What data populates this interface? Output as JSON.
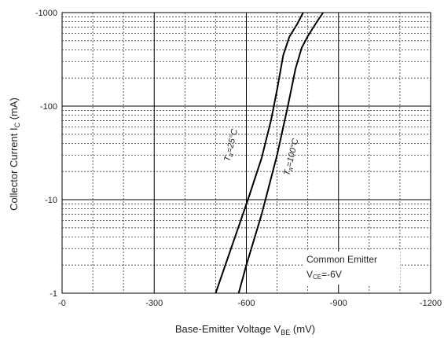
{
  "chart_data": {
    "type": "line",
    "title": "",
    "xlabel": {
      "text": "Base-Emitter Voltage  V",
      "sub": "BE",
      "unit": "  (mV)"
    },
    "ylabel": {
      "text": "Collector Current  I",
      "sub": "C",
      "unit": " (mA)"
    },
    "xlim": [
      0,
      -1200
    ],
    "ylim": [
      -1,
      -1000
    ],
    "yscale": "log",
    "grid": true,
    "x_ticks": [
      0,
      -300,
      -600,
      -900,
      -1200
    ],
    "x_tick_labels": [
      "-0",
      "-300",
      "-600",
      "-900",
      "-1200"
    ],
    "y_ticks": [
      -1,
      -10,
      -100,
      -1000
    ],
    "y_tick_labels": [
      "-1",
      "-10",
      "-100",
      "-1000"
    ],
    "series": [
      {
        "name": "Ta=25°C",
        "label": {
          "pre": "T",
          "sub": "a",
          "post": "=25°C"
        },
        "points": [
          [
            -500,
            -1
          ],
          [
            -550,
            -3
          ],
          [
            -605,
            -10
          ],
          [
            -650,
            -28
          ],
          [
            -680,
            -70
          ],
          [
            -700,
            -150
          ],
          [
            -720,
            -350
          ],
          [
            -740,
            -550
          ],
          [
            -765,
            -750
          ],
          [
            -785,
            -1000
          ]
        ]
      },
      {
        "name": "Ta=100°C",
        "label": {
          "pre": "T",
          "sub": "a",
          "post": "=100°C"
        },
        "points": [
          [
            -575,
            -1
          ],
          [
            -600,
            -2
          ],
          [
            -650,
            -7
          ],
          [
            -700,
            -30
          ],
          [
            -735,
            -100
          ],
          [
            -760,
            -250
          ],
          [
            -780,
            -420
          ],
          [
            -800,
            -560
          ],
          [
            -830,
            -800
          ],
          [
            -850,
            -1000
          ]
        ]
      }
    ],
    "annotation": {
      "line1": "Common Emitter",
      "line2_pre": "V",
      "line2_sub": "CE",
      "line2_post": "=-6V"
    }
  }
}
